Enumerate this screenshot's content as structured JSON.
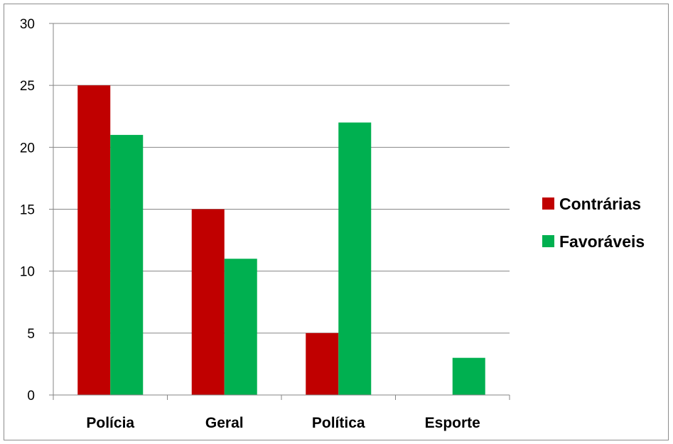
{
  "chart_data": {
    "type": "bar",
    "title": "",
    "xlabel": "",
    "ylabel": "",
    "categories": [
      "Polícia",
      "Geral",
      "Política",
      "Esporte"
    ],
    "series": [
      {
        "name": "Contrárias",
        "color": "#c00000",
        "values": [
          25,
          15,
          5,
          0
        ]
      },
      {
        "name": "Favoráveis",
        "color": "#00b050",
        "values": [
          21,
          11,
          22,
          3
        ]
      }
    ],
    "ylim": [
      0,
      30
    ],
    "yticks": [
      0,
      5,
      10,
      15,
      20,
      25,
      30
    ],
    "grid": true,
    "legend_position": "right"
  }
}
